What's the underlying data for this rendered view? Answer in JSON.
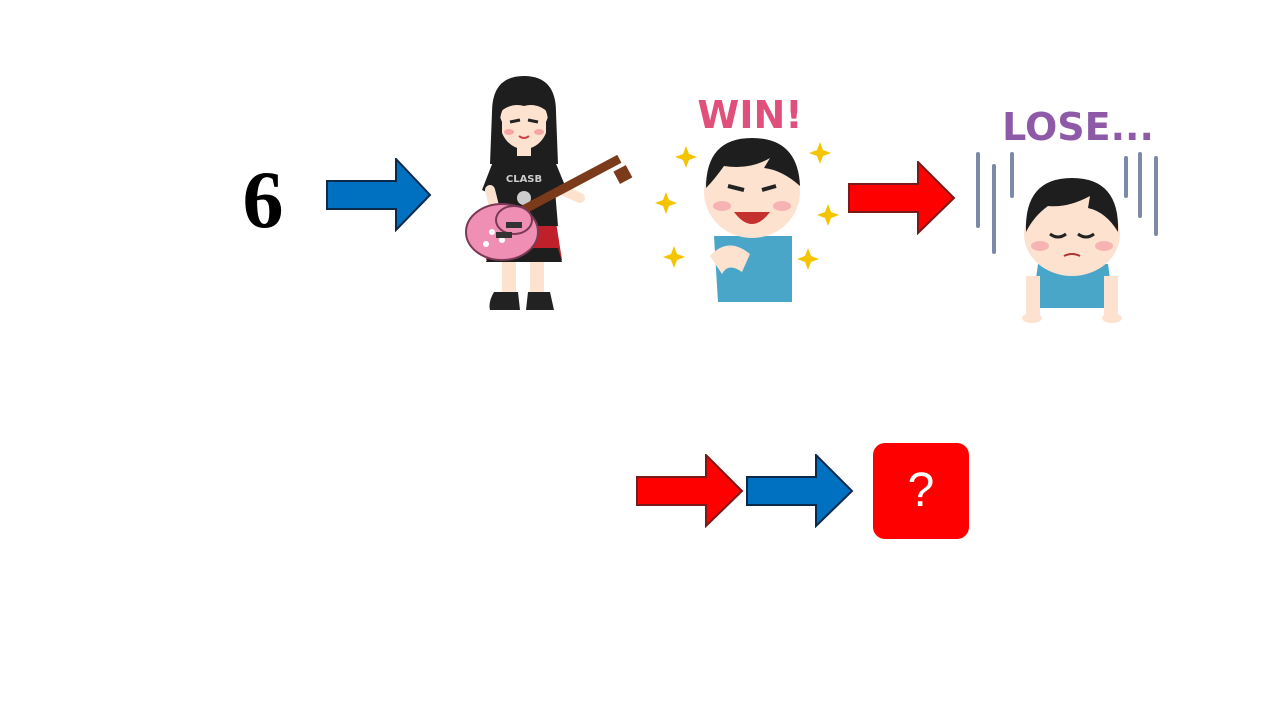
{
  "slide": {
    "number": "6",
    "win_text": "WIN!",
    "lose_text": "LOSE...",
    "question_mark": "?"
  },
  "colors": {
    "blue_arrow": "#0070c0",
    "red_arrow": "#ff0000",
    "question_box": "#ff0000",
    "win_text": "#e0507a",
    "lose_text": "#8e5aa8",
    "guitar": "#f08fb4",
    "shirt_teal": "#4aa6c8",
    "hair": "#1e1e1e",
    "skin": "#fde3cf",
    "sparkle": "#f5c400"
  },
  "icons": [
    "blue-arrow-icon",
    "guitarist-girl-illustration",
    "win-boy-illustration",
    "red-arrow-icon",
    "lose-boy-illustration",
    "question-mark-box"
  ]
}
